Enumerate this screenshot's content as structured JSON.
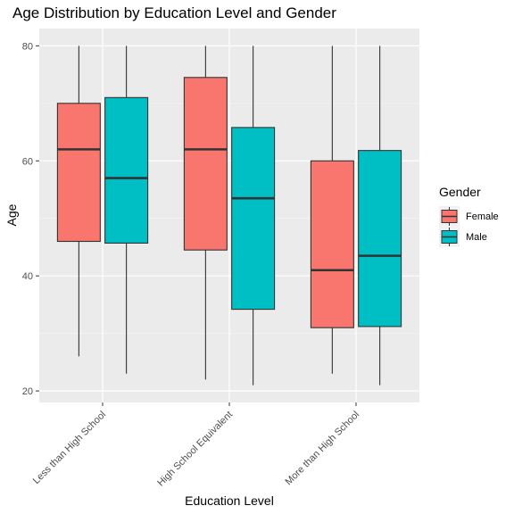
{
  "chart_data": {
    "type": "boxplot",
    "title": "Age Distribution by Education Level and Gender",
    "xlabel": "Education Level",
    "ylabel": "Age",
    "categories": [
      "Less than High School",
      "High School Equivalent",
      "More than High School"
    ],
    "ylim": [
      18,
      83
    ],
    "yticks": [
      20,
      40,
      60,
      80
    ],
    "grid": true,
    "legend": {
      "title": "Gender",
      "position": "right"
    },
    "series": [
      {
        "name": "Female",
        "color": "#F8766D",
        "boxes": [
          {
            "min": 26,
            "q1": 46,
            "median": 62,
            "q3": 70,
            "max": 80
          },
          {
            "min": 22,
            "q1": 44.5,
            "median": 62,
            "q3": 74.5,
            "max": 80
          },
          {
            "min": 23,
            "q1": 31,
            "median": 41,
            "q3": 60,
            "max": 80
          }
        ]
      },
      {
        "name": "Male",
        "color": "#00BFC4",
        "boxes": [
          {
            "min": 23,
            "q1": 45.7,
            "median": 57,
            "q3": 71,
            "max": 80
          },
          {
            "min": 21,
            "q1": 34.2,
            "median": 53.5,
            "q3": 65.8,
            "max": 80
          },
          {
            "min": 21,
            "q1": 31.2,
            "median": 43.5,
            "q3": 61.8,
            "max": 80
          }
        ]
      }
    ]
  }
}
